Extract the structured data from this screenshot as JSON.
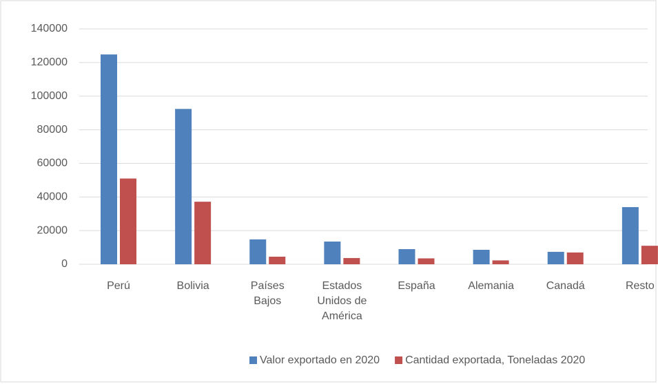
{
  "chart_data": {
    "type": "bar",
    "categories": [
      "Perú",
      "Bolivia",
      "Países Bajos",
      "Estados Unidos de América",
      "España",
      "Alemania",
      "Canadá",
      "Resto"
    ],
    "series": [
      {
        "name": "Valor exportado en 2020",
        "color": "#4f81bd",
        "values": [
          124800,
          92400,
          14800,
          13500,
          9000,
          8600,
          7400,
          34000
        ]
      },
      {
        "name": "Cantidad exportada, Toneladas 2020",
        "color": "#c0504d",
        "values": [
          51000,
          37200,
          4500,
          3700,
          3500,
          2300,
          7000,
          11000
        ]
      }
    ],
    "ylim": [
      0,
      140000
    ],
    "yticks": [
      0,
      20000,
      40000,
      60000,
      80000,
      100000,
      120000,
      140000
    ],
    "grid": true,
    "legend": "bottom"
  }
}
